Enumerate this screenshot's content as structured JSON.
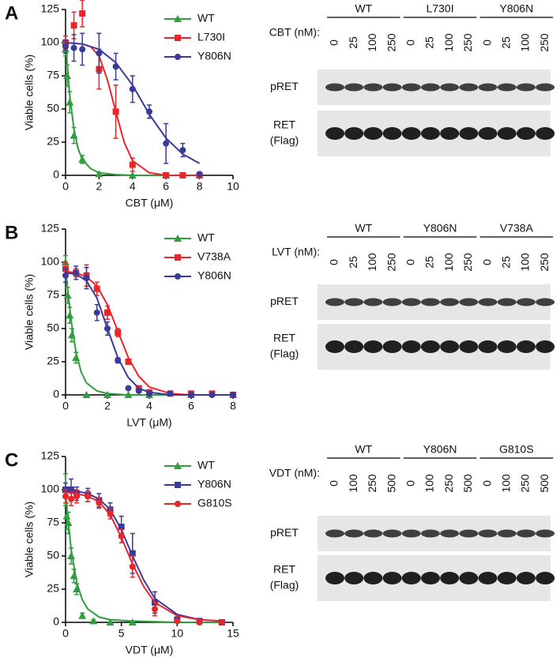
{
  "panel_labels": [
    "A",
    "B",
    "C"
  ],
  "chart_data": [
    {
      "type": "scatter",
      "ylabel": "Viable cells (%)",
      "xlabel": "CBT (μM)",
      "xlim": [
        0,
        10
      ],
      "xticks": [
        0,
        2,
        4,
        6,
        8,
        10
      ],
      "ylim": [
        0,
        125
      ],
      "yticks": [
        0,
        25,
        50,
        75,
        100,
        125
      ],
      "series": [
        {
          "name": "WT",
          "color": "#2e9e3e",
          "marker": "triangle",
          "x": [
            0,
            0.1,
            0.25,
            0.5,
            1,
            2,
            4,
            6,
            8
          ],
          "values": [
            95,
            75,
            55,
            30,
            12,
            1,
            0,
            0,
            0
          ],
          "errors": [
            5,
            8,
            8,
            6,
            3,
            1,
            0,
            0,
            0
          ],
          "fit_x": [
            0,
            0.25,
            0.5,
            0.75,
            1,
            1.5,
            2,
            3,
            4,
            6,
            8
          ],
          "fit_values": [
            100,
            60,
            35,
            20,
            12,
            5,
            2,
            0.5,
            0,
            0,
            0
          ]
        },
        {
          "name": "L730I",
          "color": "#e8252a",
          "marker": "square",
          "x": [
            0,
            0.5,
            1,
            2,
            3,
            4,
            6,
            7,
            8
          ],
          "values": [
            100,
            113,
            122,
            80,
            48,
            8,
            0,
            0,
            0
          ],
          "errors": [
            5,
            10,
            10,
            15,
            20,
            5,
            0,
            0,
            0
          ],
          "fit_x": [
            0,
            1,
            1.5,
            2,
            2.5,
            3,
            3.5,
            4,
            5,
            6,
            8
          ],
          "fit_values": [
            100,
            99,
            97,
            90,
            72,
            48,
            25,
            11,
            2,
            0,
            0
          ]
        },
        {
          "name": "Y806N",
          "color": "#3a3a9a",
          "marker": "circle",
          "x": [
            0,
            0.5,
            1,
            2,
            3,
            4,
            5,
            6,
            7,
            8
          ],
          "values": [
            97,
            96,
            95,
            92,
            82,
            65,
            48,
            24,
            19,
            1
          ],
          "errors": [
            5,
            10,
            12,
            15,
            10,
            10,
            5,
            15,
            5,
            1
          ],
          "fit_x": [
            0,
            1,
            2,
            3,
            4,
            5,
            6,
            7,
            8
          ],
          "fit_values": [
            100,
            99,
            95,
            85,
            68,
            46,
            28,
            16,
            9
          ]
        }
      ]
    },
    {
      "type": "scatter",
      "ylabel": "Viable cells (%)",
      "xlabel": "LVT (μM)",
      "xlim": [
        0,
        8
      ],
      "xticks": [
        0,
        2,
        4,
        6,
        8
      ],
      "ylim": [
        0,
        125
      ],
      "yticks": [
        0,
        25,
        50,
        75,
        100,
        125
      ],
      "series": [
        {
          "name": "WT",
          "color": "#2e9e3e",
          "marker": "triangle",
          "x": [
            0,
            0.1,
            0.2,
            0.3,
            0.5,
            1,
            2,
            3,
            4,
            6,
            8
          ],
          "values": [
            100,
            75,
            60,
            45,
            28,
            0,
            0,
            0,
            0,
            0,
            0
          ],
          "errors": [
            5,
            6,
            6,
            5,
            4,
            0,
            0,
            0,
            0,
            0,
            0
          ],
          "fit_x": [
            0,
            0.25,
            0.5,
            0.75,
            1,
            1.5,
            2,
            3,
            8
          ],
          "fit_values": [
            95,
            58,
            32,
            17,
            9,
            3,
            1,
            0,
            0
          ]
        },
        {
          "name": "V738A",
          "color": "#e8252a",
          "marker": "square",
          "x": [
            0,
            0.5,
            1,
            1.5,
            2,
            2.5,
            3,
            3.5,
            4,
            5,
            6,
            7,
            8
          ],
          "values": [
            95,
            92,
            90,
            80,
            62,
            47,
            25,
            5,
            2,
            1,
            1,
            1,
            0
          ],
          "errors": [
            5,
            3,
            8,
            5,
            5,
            3,
            2,
            1,
            0,
            0,
            0,
            0,
            0
          ],
          "fit_x": [
            0,
            0.5,
            1,
            1.5,
            2,
            2.5,
            3,
            3.5,
            4,
            5,
            6,
            8
          ],
          "fit_values": [
            93,
            92,
            89,
            82,
            68,
            48,
            28,
            14,
            6,
            1,
            0,
            0
          ]
        },
        {
          "name": "Y806N",
          "color": "#3a3a9a",
          "marker": "circle",
          "x": [
            0,
            0.5,
            1,
            1.5,
            2,
            2.5,
            3,
            3.5,
            4,
            5,
            6,
            7,
            8
          ],
          "values": [
            90,
            92,
            88,
            62,
            50,
            26,
            5,
            3,
            1,
            1,
            0,
            0,
            0
          ],
          "errors": [
            5,
            5,
            8,
            6,
            5,
            2,
            1,
            0,
            0,
            0,
            0,
            0,
            0
          ],
          "fit_x": [
            0,
            0.5,
            1,
            1.5,
            2,
            2.5,
            3,
            3.5,
            4,
            5,
            6,
            8
          ],
          "fit_values": [
            92,
            91,
            86,
            73,
            50,
            28,
            13,
            5,
            2,
            0,
            0,
            0
          ]
        }
      ]
    },
    {
      "type": "scatter",
      "ylabel": "Viable cells (%)",
      "xlabel": "VDT (μM)",
      "xlim": [
        0,
        15
      ],
      "xticks": [
        0,
        5,
        10,
        15
      ],
      "ylim": [
        0,
        125
      ],
      "yticks": [
        0,
        25,
        50,
        75,
        100,
        125
      ],
      "series": [
        {
          "name": "WT",
          "color": "#2e9e3e",
          "marker": "triangle",
          "x": [
            0,
            0.1,
            0.25,
            0.5,
            0.75,
            1,
            1.5,
            2.5,
            4,
            6
          ],
          "values": [
            100,
            80,
            75,
            50,
            35,
            25,
            5,
            1,
            0,
            0
          ],
          "errors": [
            12,
            10,
            8,
            6,
            5,
            4,
            2,
            1,
            0,
            0
          ],
          "fit_x": [
            0,
            0.5,
            1,
            1.5,
            2,
            3,
            4,
            6,
            10,
            14
          ],
          "fit_values": [
            97,
            55,
            30,
            17,
            10,
            4,
            2,
            1,
            0,
            0
          ]
        },
        {
          "name": "Y806N",
          "color": "#3a3a9a",
          "marker": "square",
          "x": [
            0,
            0.5,
            1,
            2,
            3,
            4,
            5,
            6,
            8,
            10,
            12,
            14
          ],
          "values": [
            100,
            100,
            97,
            96,
            92,
            85,
            72,
            52,
            15,
            2,
            1,
            0
          ],
          "errors": [
            5,
            8,
            5,
            5,
            5,
            5,
            8,
            15,
            8,
            2,
            1,
            0
          ],
          "fit_x": [
            0,
            1,
            2,
            3,
            4,
            5,
            6,
            7,
            8,
            10,
            12,
            14
          ],
          "fit_values": [
            100,
            99,
            97,
            93,
            85,
            70,
            50,
            32,
            18,
            6,
            2,
            1
          ]
        },
        {
          "name": "G810S",
          "color": "#e8252a",
          "marker": "circle",
          "x": [
            0,
            0.5,
            1,
            2,
            3,
            4,
            5,
            6,
            8,
            10,
            12,
            14
          ],
          "values": [
            95,
            93,
            95,
            95,
            90,
            82,
            65,
            42,
            10,
            1,
            0,
            0
          ],
          "errors": [
            5,
            5,
            5,
            4,
            4,
            4,
            5,
            8,
            5,
            1,
            0,
            0
          ],
          "fit_x": [
            0,
            1,
            2,
            3,
            4,
            5,
            6,
            7,
            8,
            10,
            12,
            14
          ],
          "fit_values": [
            98,
            97,
            95,
            91,
            81,
            64,
            44,
            27,
            15,
            5,
            2,
            1
          ]
        }
      ]
    }
  ],
  "blots": [
    {
      "groups": [
        "WT",
        "L730I",
        "Y806N"
      ],
      "dose_label": "CBT (nM):",
      "doses": [
        "0",
        "25",
        "100",
        "250"
      ],
      "rows": [
        [
          "pRET"
        ],
        [
          "RET",
          "(Flag)"
        ]
      ]
    },
    {
      "groups": [
        "WT",
        "Y806N",
        "V738A"
      ],
      "dose_label": "LVT (nM):",
      "doses": [
        "0",
        "25",
        "100",
        "250"
      ],
      "rows": [
        [
          "pRET"
        ],
        [
          "RET",
          "(Flag)"
        ]
      ]
    },
    {
      "groups": [
        "WT",
        "Y806N",
        "G810S"
      ],
      "dose_label": "VDT (nM):",
      "doses": [
        "0",
        "100",
        "250",
        "500"
      ],
      "rows": [
        [
          "pRET"
        ],
        [
          "RET",
          "(Flag)"
        ]
      ]
    }
  ]
}
